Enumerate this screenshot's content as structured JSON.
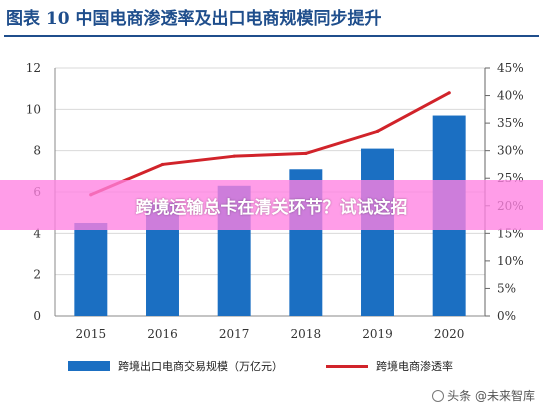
{
  "header": {
    "title": "图表 10  中国电商渗透率及出口电商规模同步提升"
  },
  "overlay": {
    "banner_text": "跨境运输总卡在清关环节？试试这招"
  },
  "watermark": {
    "text": "头条 @未来智库"
  },
  "colors": {
    "bar": "#1b6fc2",
    "line": "#d1232a",
    "title": "#1f4e8c",
    "grid": "#d9d9d9",
    "banner": "#ff82e1"
  },
  "chart_data": {
    "type": "bar",
    "categories": [
      "2015",
      "2016",
      "2017",
      "2018",
      "2019",
      "2020"
    ],
    "series": [
      {
        "name": "跨境出口电商交易规模（万亿元）",
        "type": "bar",
        "axis": "left",
        "values": [
          4.5,
          5.5,
          6.3,
          7.1,
          8.1,
          9.7
        ]
      },
      {
        "name": "跨境电商渗透率",
        "type": "line",
        "axis": "right",
        "values": [
          22.0,
          27.5,
          29.0,
          29.5,
          33.5,
          40.5
        ]
      }
    ],
    "y_left": {
      "min": 0,
      "max": 12,
      "ticks": [
        "0",
        "2",
        "4",
        "6",
        "8",
        "10",
        "12"
      ]
    },
    "y_right": {
      "min": 0,
      "max": 45,
      "ticks": [
        "0%",
        "5%",
        "10%",
        "15%",
        "20%",
        "25%",
        "30%",
        "35%",
        "40%",
        "45%"
      ]
    },
    "grid": true,
    "legend_position": "bottom"
  }
}
